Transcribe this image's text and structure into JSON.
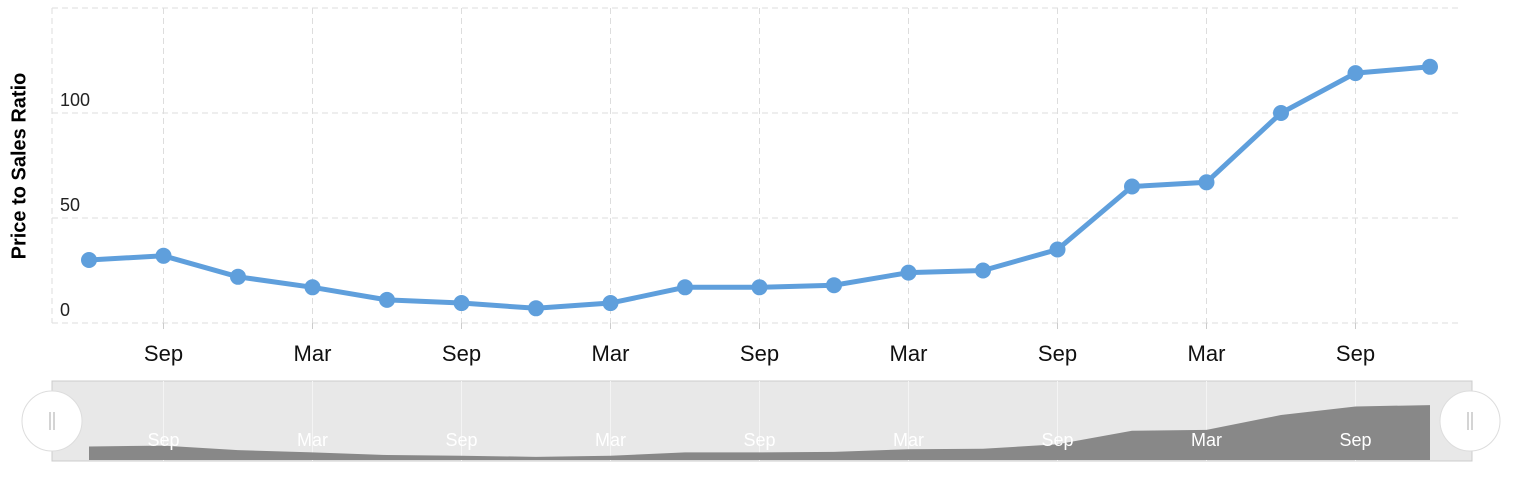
{
  "chart_data": {
    "type": "line",
    "y_label": "Price to Sales Ratio",
    "categories": [
      null,
      "Sep",
      null,
      "Mar",
      null,
      "Sep",
      null,
      "Mar",
      null,
      "Sep",
      null,
      "Mar",
      null,
      "Sep",
      null,
      "Mar",
      null,
      "Sep",
      null
    ],
    "series": [
      {
        "color": "#5f9fdc",
        "values": [
          30,
          32,
          22,
          17,
          11,
          9.5,
          7,
          9.5,
          17,
          17,
          18,
          24,
          25,
          35,
          65,
          67,
          100,
          119,
          122
        ]
      }
    ],
    "ylim": [
      0,
      150
    ],
    "yticks": [
      0,
      50,
      100
    ],
    "grid": true
  }
}
